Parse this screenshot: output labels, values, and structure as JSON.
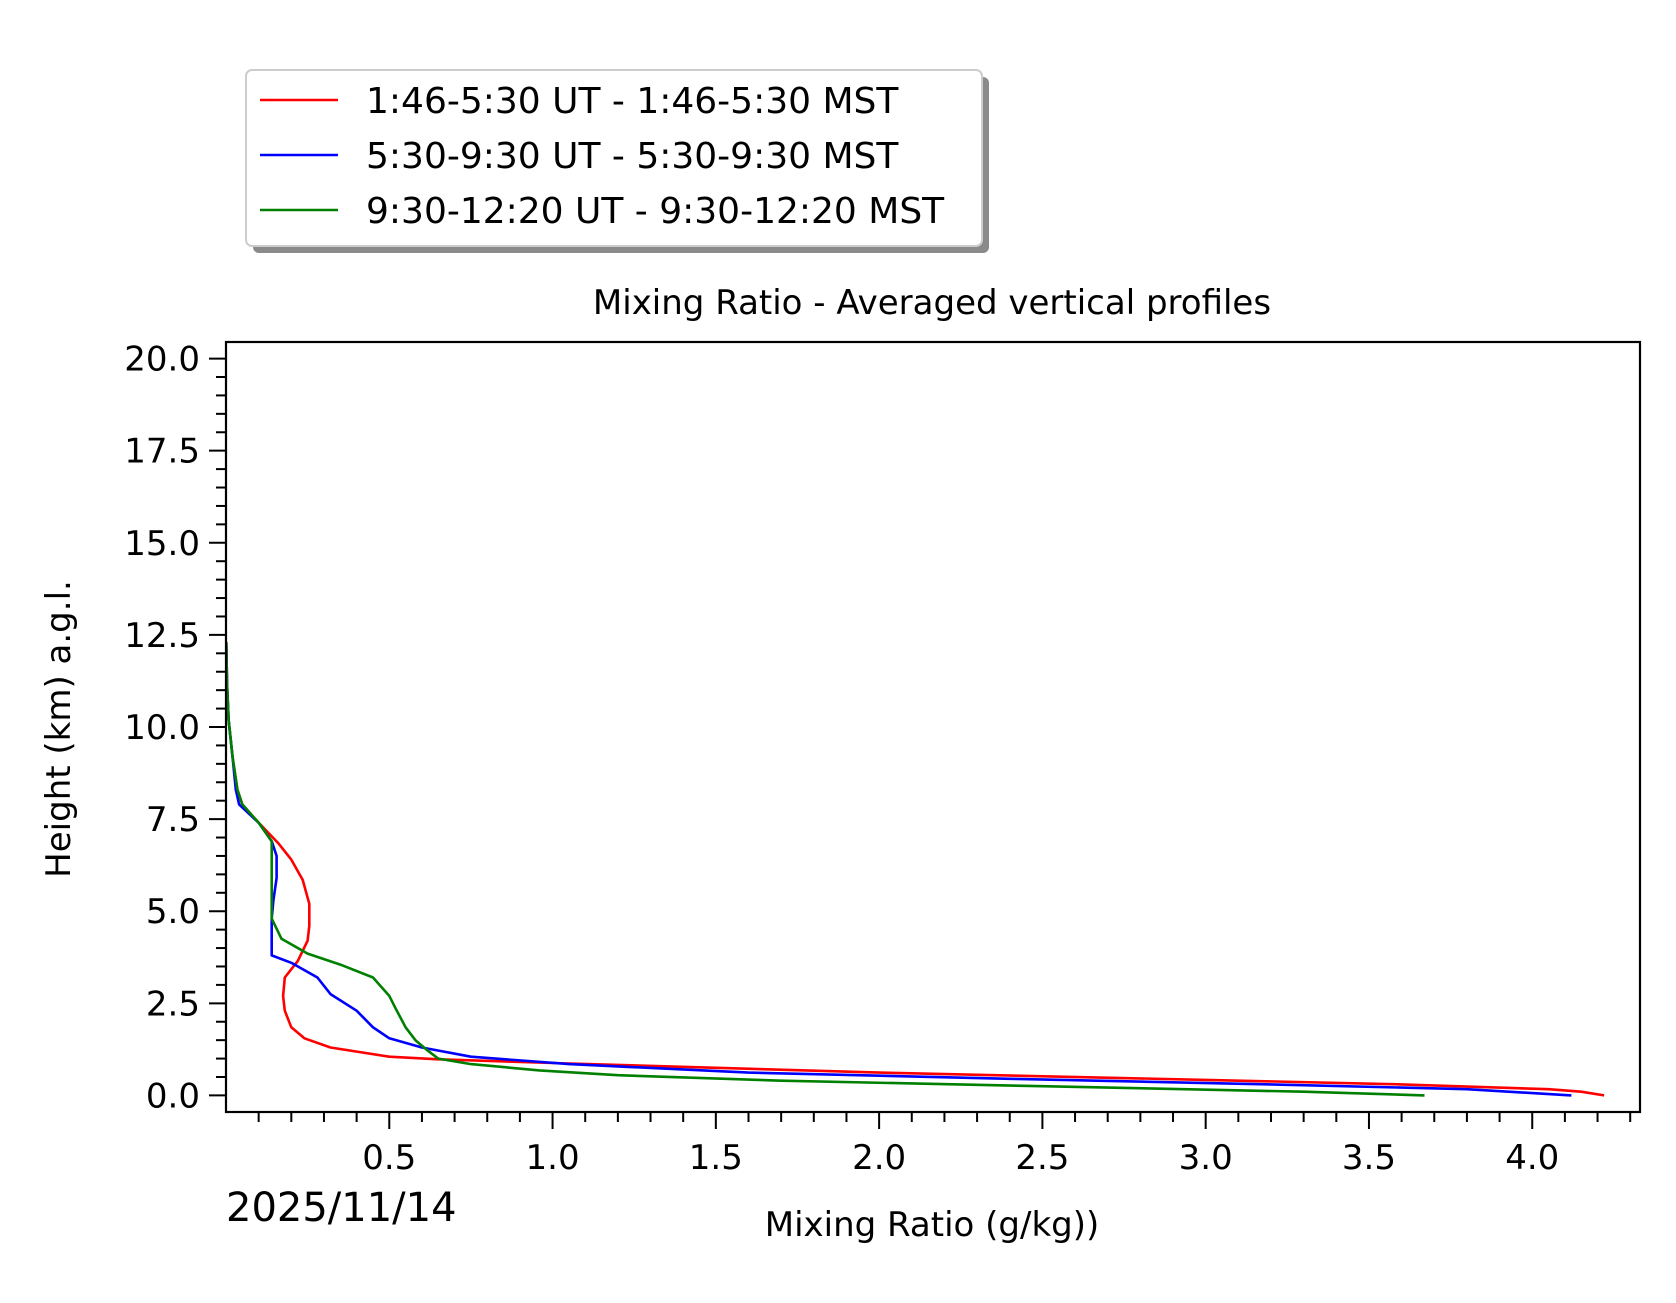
{
  "chart_data": {
    "type": "line",
    "title": "Mixing Ratio - Averaged vertical profiles",
    "xlabel": "Mixing Ratio (g/kg))",
    "ylabel": "Height (km) a.g.l.",
    "xlim": [
      0.0,
      4.33
    ],
    "ylim": [
      -0.45,
      20.45
    ],
    "xticks": [
      "0.5",
      "1.0",
      "1.5",
      "2.0",
      "2.5",
      "3.0",
      "3.5",
      "4.0"
    ],
    "xtick_values": [
      0.5,
      1.0,
      1.5,
      2.0,
      2.5,
      3.0,
      3.5,
      4.0
    ],
    "yticks": [
      "0.0",
      "2.5",
      "5.0",
      "7.5",
      "10.0",
      "12.5",
      "15.0",
      "17.5",
      "20.0"
    ],
    "ytick_values": [
      0.0,
      2.5,
      5.0,
      7.5,
      10.0,
      12.5,
      15.0,
      17.5,
      20.0
    ],
    "legend_position": "upper-left-outside",
    "date_label": "2025/11/14",
    "series": [
      {
        "name": "1:46-5:30 UT - 1:46-5:30 MST",
        "color": "#ff0000",
        "points": [
          [
            4.22,
            0.0
          ],
          [
            4.15,
            0.1
          ],
          [
            4.05,
            0.17
          ],
          [
            3.6,
            0.3
          ],
          [
            3.0,
            0.42
          ],
          [
            2.0,
            0.62
          ],
          [
            1.0,
            0.88
          ],
          [
            0.65,
            0.98
          ],
          [
            0.5,
            1.05
          ],
          [
            0.32,
            1.3
          ],
          [
            0.24,
            1.55
          ],
          [
            0.2,
            1.85
          ],
          [
            0.18,
            2.3
          ],
          [
            0.175,
            2.7
          ],
          [
            0.18,
            3.2
          ],
          [
            0.22,
            3.65
          ],
          [
            0.25,
            4.2
          ],
          [
            0.255,
            4.6
          ],
          [
            0.255,
            5.2
          ],
          [
            0.235,
            5.85
          ],
          [
            0.2,
            6.4
          ],
          [
            0.16,
            6.85
          ],
          [
            0.1,
            7.4
          ],
          [
            0.05,
            7.9
          ],
          [
            0.035,
            8.3
          ],
          [
            0.02,
            9.2
          ],
          [
            0.008,
            10.2
          ],
          [
            0.003,
            11.2
          ],
          [
            0.001,
            12.3
          ]
        ]
      },
      {
        "name": "5:30-9:30 UT - 5:30-9:30 MST",
        "color": "#0000ff",
        "points": [
          [
            4.12,
            0.0
          ],
          [
            3.8,
            0.17
          ],
          [
            3.2,
            0.3
          ],
          [
            2.4,
            0.45
          ],
          [
            1.6,
            0.62
          ],
          [
            1.05,
            0.85
          ],
          [
            0.75,
            1.05
          ],
          [
            0.6,
            1.3
          ],
          [
            0.5,
            1.55
          ],
          [
            0.45,
            1.85
          ],
          [
            0.4,
            2.3
          ],
          [
            0.32,
            2.75
          ],
          [
            0.28,
            3.2
          ],
          [
            0.2,
            3.6
          ],
          [
            0.14,
            3.8
          ],
          [
            0.14,
            4.25
          ],
          [
            0.14,
            4.8
          ],
          [
            0.145,
            5.3
          ],
          [
            0.155,
            5.9
          ],
          [
            0.155,
            6.5
          ],
          [
            0.14,
            6.9
          ],
          [
            0.1,
            7.4
          ],
          [
            0.04,
            7.9
          ],
          [
            0.03,
            8.3
          ],
          [
            0.02,
            9.2
          ],
          [
            0.008,
            10.2
          ],
          [
            0.003,
            11.2
          ],
          [
            0.001,
            12.3
          ]
        ]
      },
      {
        "name": "9:30-12:20 UT - 9:30-12:20 MST",
        "color": "#008000",
        "points": [
          [
            3.67,
            0.0
          ],
          [
            3.3,
            0.1
          ],
          [
            2.5,
            0.25
          ],
          [
            1.7,
            0.4
          ],
          [
            1.2,
            0.55
          ],
          [
            0.96,
            0.68
          ],
          [
            0.75,
            0.85
          ],
          [
            0.65,
            1.0
          ],
          [
            0.62,
            1.2
          ],
          [
            0.58,
            1.5
          ],
          [
            0.55,
            1.85
          ],
          [
            0.52,
            2.35
          ],
          [
            0.5,
            2.7
          ],
          [
            0.45,
            3.2
          ],
          [
            0.35,
            3.55
          ],
          [
            0.25,
            3.85
          ],
          [
            0.17,
            4.25
          ],
          [
            0.14,
            4.8
          ],
          [
            0.14,
            5.3
          ],
          [
            0.14,
            5.9
          ],
          [
            0.14,
            6.5
          ],
          [
            0.14,
            6.9
          ],
          [
            0.1,
            7.4
          ],
          [
            0.05,
            7.9
          ],
          [
            0.035,
            8.3
          ],
          [
            0.02,
            9.2
          ],
          [
            0.008,
            10.2
          ],
          [
            0.003,
            11.2
          ],
          [
            0.001,
            12.3
          ]
        ]
      }
    ]
  }
}
